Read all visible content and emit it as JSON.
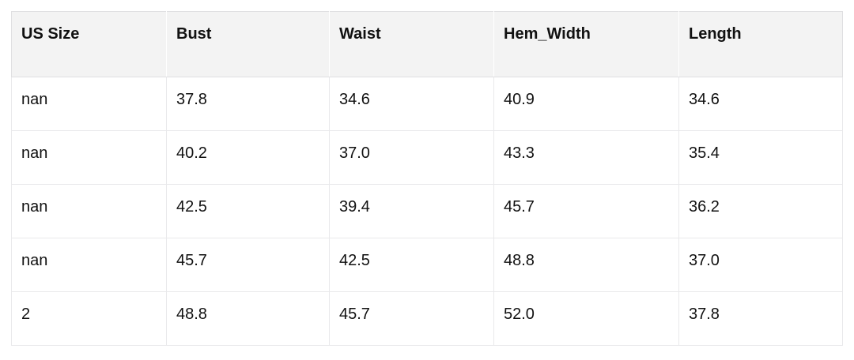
{
  "page": {
    "background": "#ffffff"
  },
  "table": {
    "columns": [
      "US Size",
      "Bust",
      "Waist",
      "Hem_Width",
      "Length"
    ],
    "rows": [
      [
        "nan",
        "37.8",
        "34.6",
        "40.9",
        "34.6"
      ],
      [
        "nan",
        "40.2",
        "37.0",
        "43.3",
        "35.4"
      ],
      [
        "nan",
        "42.5",
        "39.4",
        "45.7",
        "36.2"
      ],
      [
        "nan",
        "45.7",
        "42.5",
        "48.8",
        "37.0"
      ],
      [
        "2",
        "48.8",
        "45.7",
        "52.0",
        "37.8"
      ]
    ],
    "style": {
      "header_background": "#f3f3f3",
      "row_background": "#ffffff",
      "outer_border_color": "#dfdfe1",
      "cell_border_color": "#e9e9eb",
      "header_divider_color": "#ffffff",
      "text_color": "#111111"
    }
  }
}
